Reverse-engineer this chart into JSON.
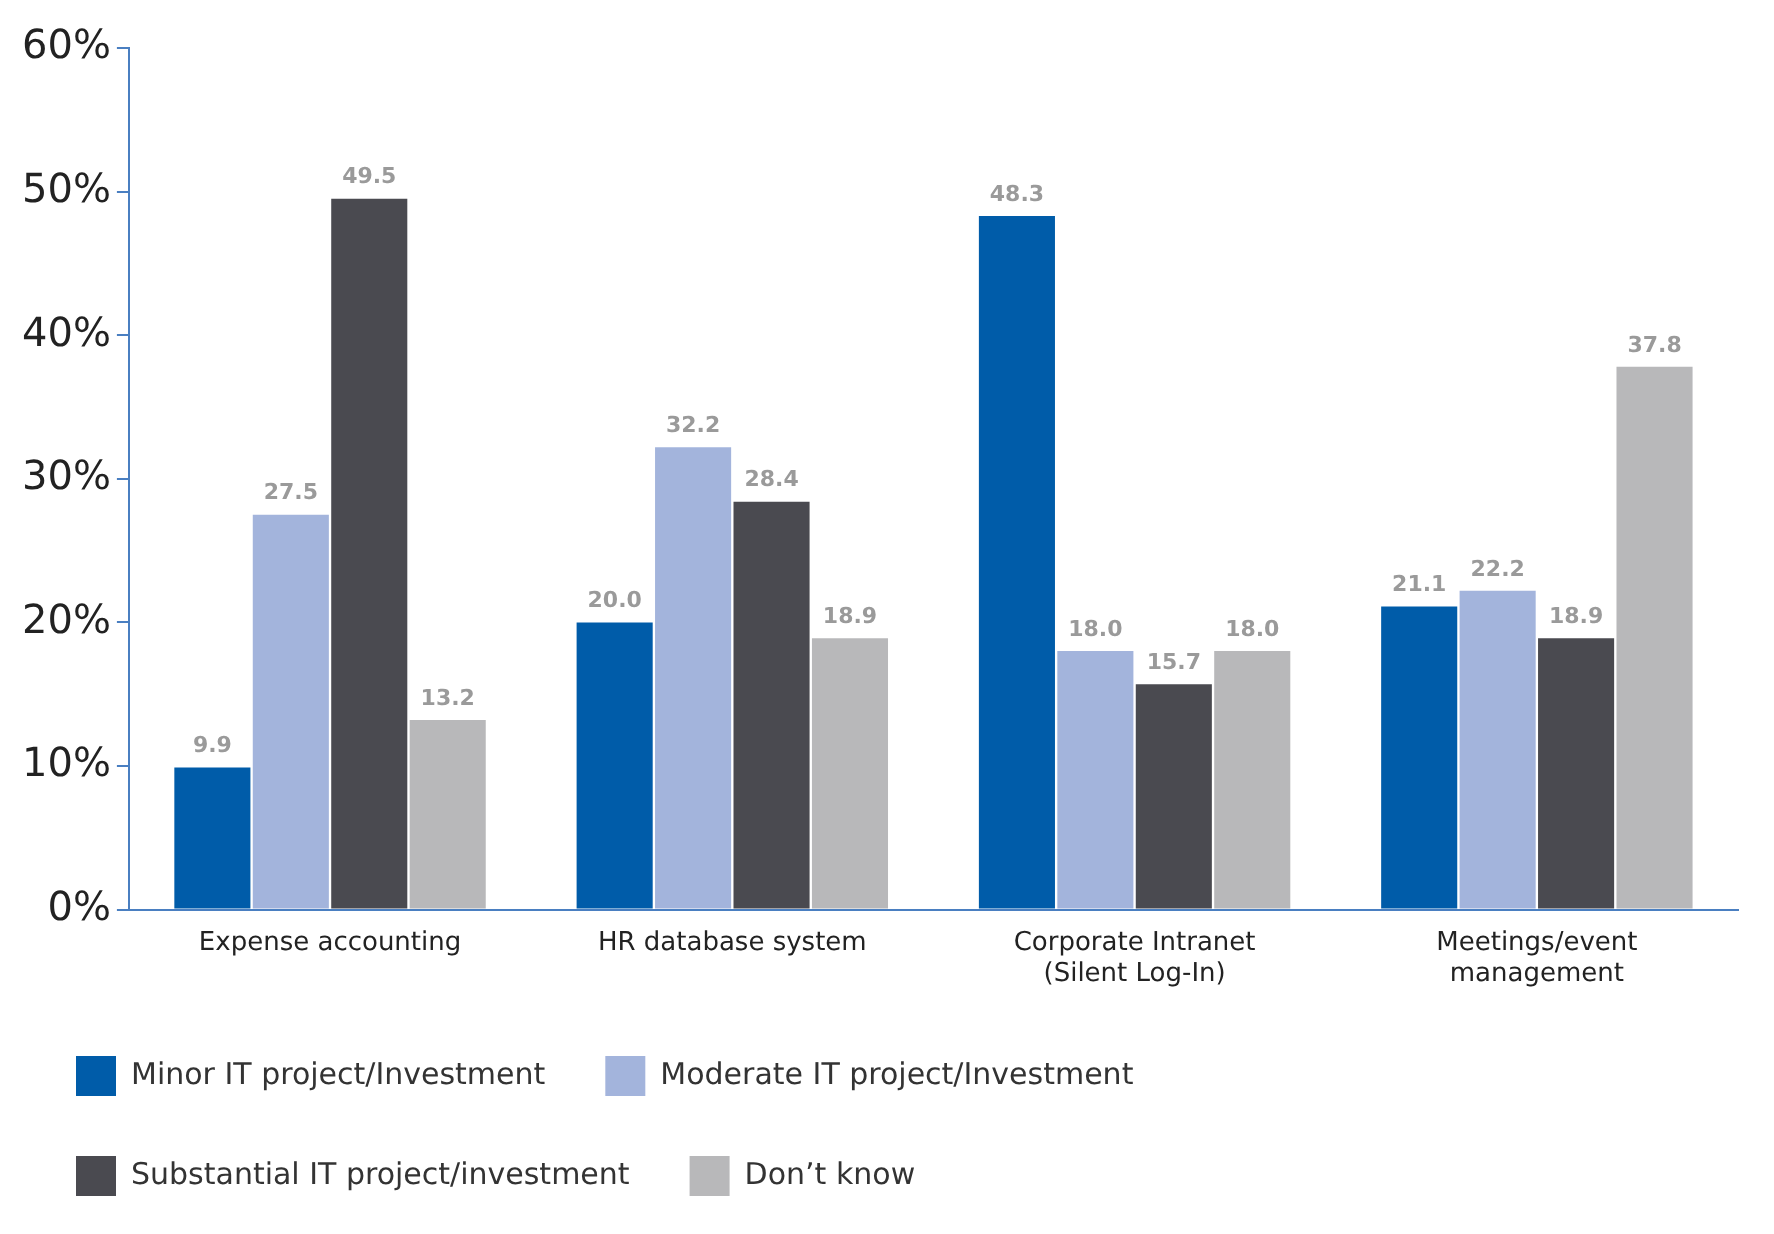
{
  "chart_data": {
    "type": "bar",
    "categories": [
      "Expense accounting",
      "HR database system",
      "Corporate Intranet (Silent Log-In)",
      "Meetings/event management"
    ],
    "series": [
      {
        "name": "Minor IT project/Investment",
        "color": "#005ca9",
        "values": [
          9.9,
          20.0,
          48.3,
          21.1
        ],
        "value_labels": [
          "9.9",
          "20.0",
          "48.3",
          "21.1"
        ]
      },
      {
        "name": "Moderate IT project/Investment",
        "color": "#a3b4dc",
        "values": [
          27.5,
          32.2,
          18.0,
          22.2
        ],
        "value_labels": [
          "27.5",
          "32.2",
          "18.0",
          "22.2"
        ]
      },
      {
        "name": "Substantial IT project/investment",
        "color": "#4a4a50",
        "values": [
          49.5,
          28.4,
          15.7,
          18.9
        ],
        "value_labels": [
          "49.5",
          "28.4",
          "15.7",
          "18.9"
        ]
      },
      {
        "name": "Don’t know",
        "color": "#b8b8ba",
        "values": [
          13.2,
          18.9,
          18.0,
          37.8
        ],
        "value_labels": [
          "13.2",
          "18.9",
          "18.0",
          "37.8"
        ]
      }
    ],
    "ylim": [
      0,
      60
    ],
    "yticks": [
      {
        "value": 0,
        "label": "0%"
      },
      {
        "value": 10,
        "label": "10%"
      },
      {
        "value": 20,
        "label": "20%"
      },
      {
        "value": 30,
        "label": "30%"
      },
      {
        "value": 40,
        "label": "40%"
      },
      {
        "value": 50,
        "label": "50%"
      },
      {
        "value": 60,
        "label": "60%"
      }
    ],
    "grid": false,
    "legend": "bottom"
  }
}
